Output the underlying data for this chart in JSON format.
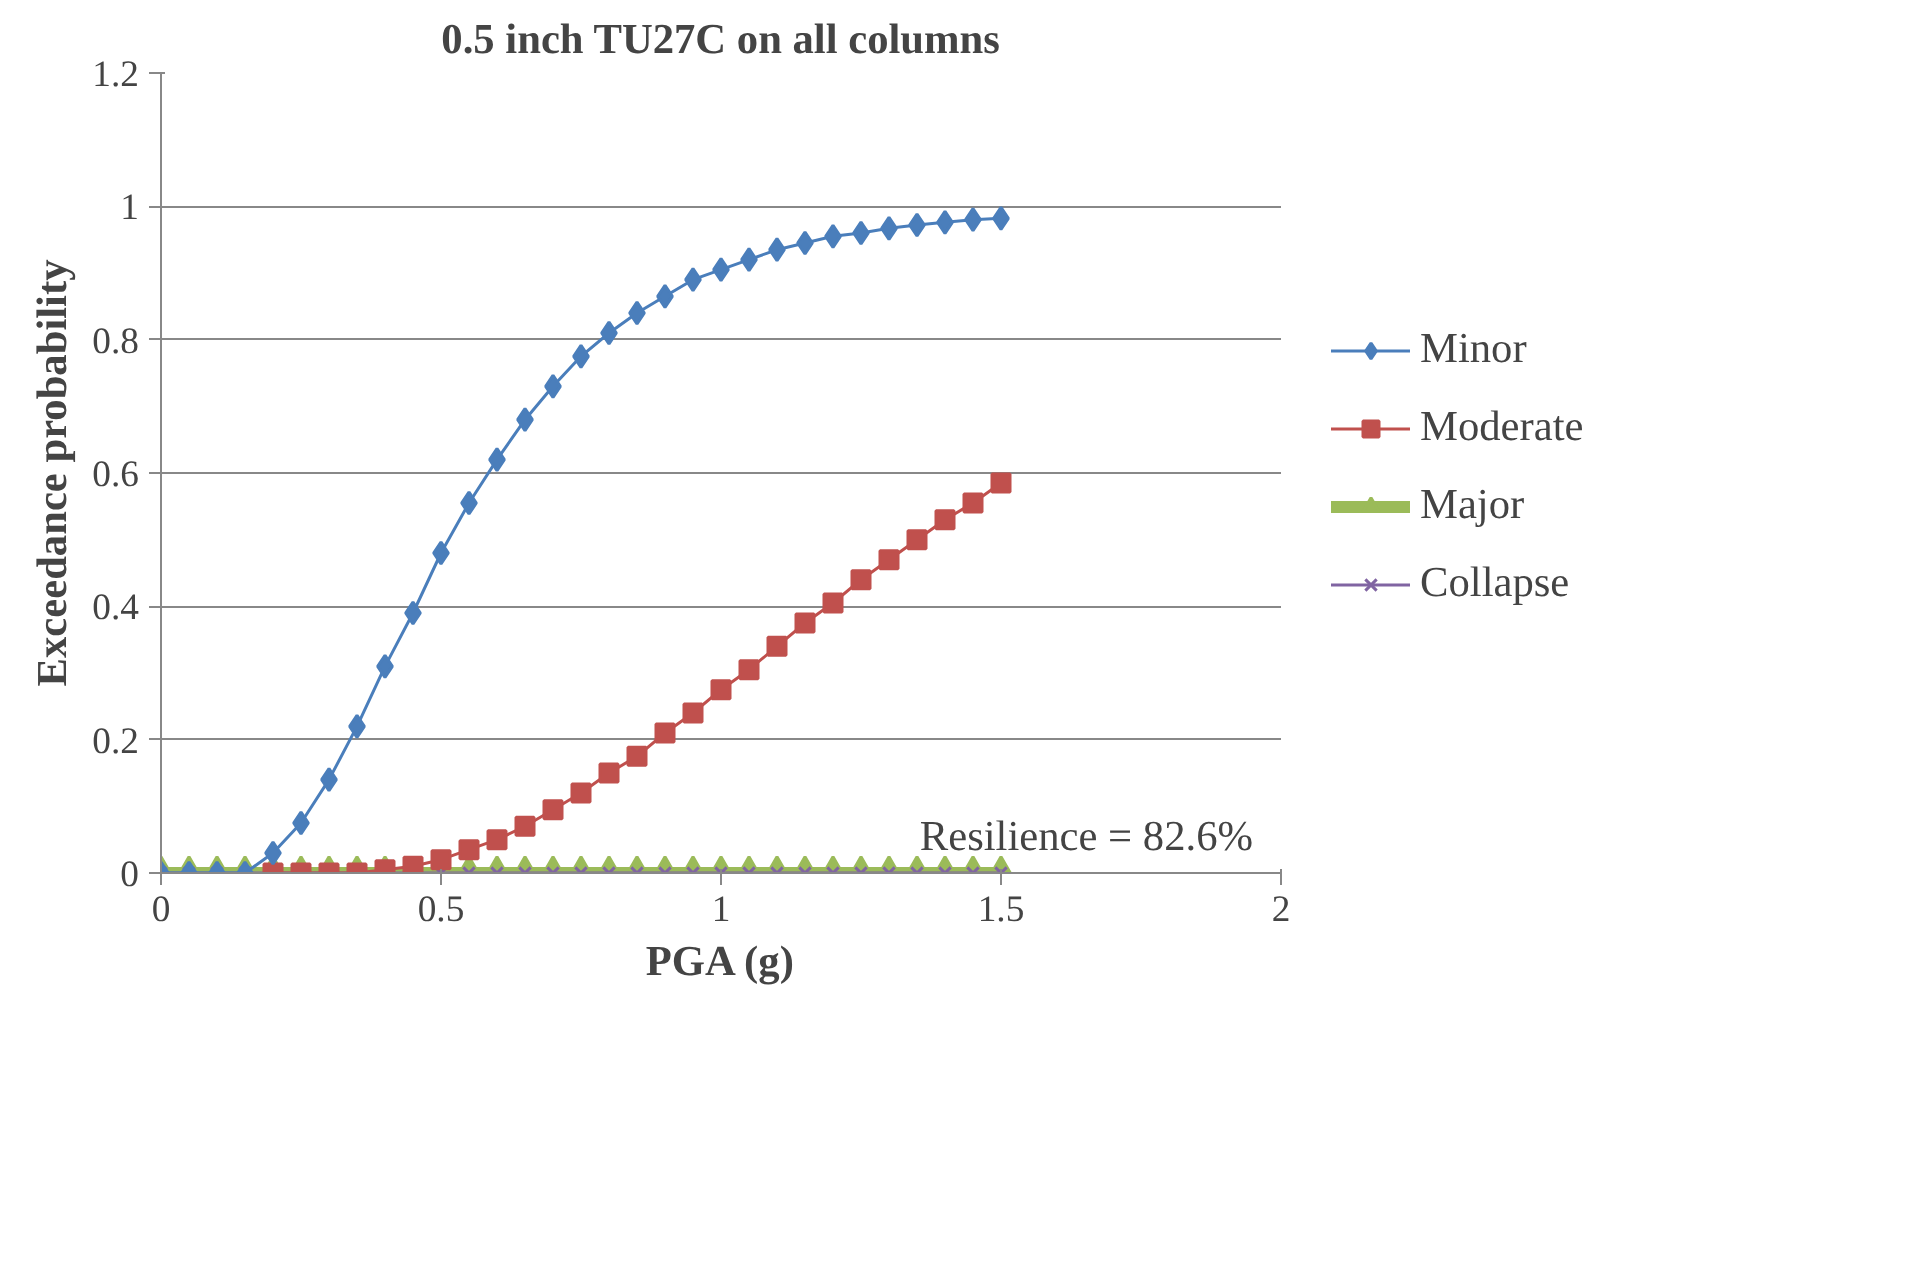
{
  "chart_data": {
    "type": "line",
    "title": "0.5 inch TU27C on all columns",
    "xlabel": "PGA (g)",
    "ylabel": "Exceedance probability",
    "x": [
      0,
      0.05,
      0.1,
      0.15,
      0.2,
      0.25,
      0.3,
      0.35,
      0.4,
      0.45,
      0.5,
      0.55,
      0.6,
      0.65,
      0.7,
      0.75,
      0.8,
      0.85,
      0.9,
      0.95,
      1.0,
      1.05,
      1.1,
      1.15,
      1.2,
      1.25,
      1.3,
      1.35,
      1.4,
      1.45,
      1.5
    ],
    "series": [
      {
        "name": "Minor",
        "color": "#4a7ebb",
        "marker": "diamond",
        "values": [
          0,
          0,
          0,
          0,
          0.03,
          0.075,
          0.14,
          0.22,
          0.31,
          0.39,
          0.48,
          0.555,
          0.62,
          0.68,
          0.73,
          0.775,
          0.81,
          0.84,
          0.865,
          0.89,
          0.905,
          0.92,
          0.935,
          0.945,
          0.955,
          0.96,
          0.967,
          0.972,
          0.976,
          0.98,
          0.982
        ]
      },
      {
        "name": "Moderate",
        "color": "#c0504d",
        "marker": "square",
        "x": [
          0.2,
          0.25,
          0.3,
          0.35,
          0.4,
          0.45,
          0.5,
          0.55,
          0.6,
          0.65,
          0.7,
          0.75,
          0.8,
          0.85,
          0.9,
          0.95,
          1.0,
          1.05,
          1.1,
          1.15,
          1.2,
          1.25,
          1.3,
          1.35,
          1.4,
          1.45,
          1.5
        ],
        "values": [
          0,
          0,
          0,
          0,
          0.005,
          0.01,
          0.02,
          0.035,
          0.05,
          0.07,
          0.095,
          0.12,
          0.15,
          0.175,
          0.21,
          0.24,
          0.275,
          0.305,
          0.34,
          0.375,
          0.405,
          0.44,
          0.47,
          0.5,
          0.53,
          0.555,
          0.585
        ]
      },
      {
        "name": "Major",
        "color": "#9bbb59",
        "marker": "triangle",
        "values": [
          0,
          0,
          0,
          0,
          0,
          0,
          0,
          0,
          0,
          0,
          0,
          0,
          0,
          0,
          0,
          0,
          0,
          0,
          0,
          0,
          0,
          0,
          0,
          0,
          0,
          0,
          0,
          0,
          0,
          0,
          0
        ]
      },
      {
        "name": "Collapse",
        "color": "#8064a2",
        "marker": "cross",
        "values": [
          0,
          0,
          0,
          0,
          0,
          0,
          0,
          0,
          0,
          0,
          0,
          0,
          0,
          0,
          0,
          0,
          0,
          0,
          0,
          0,
          0,
          0,
          0,
          0,
          0,
          0,
          0,
          0,
          0,
          0,
          0
        ]
      }
    ],
    "annotations": [
      "Resilience = 82.6%"
    ],
    "xlim": [
      0,
      2
    ],
    "xticks": [
      0,
      0.5,
      1,
      1.5,
      2
    ],
    "ylim": [
      0,
      1.2
    ],
    "yticks": [
      0,
      0.2,
      0.4,
      0.6,
      0.8,
      1,
      1.2
    ],
    "grid": "y",
    "legend": "right",
    "line_style": "solid"
  }
}
